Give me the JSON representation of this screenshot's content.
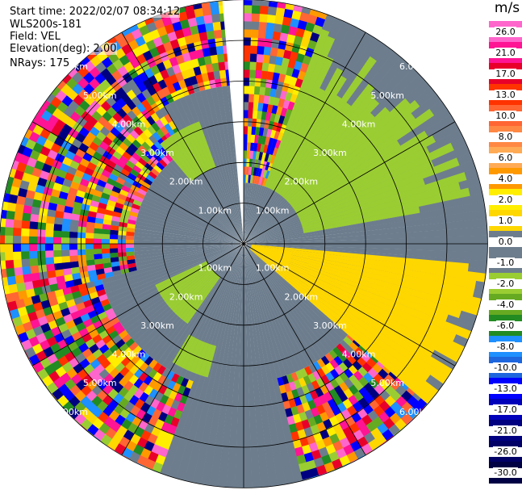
{
  "header": {
    "start_time": "Start time: 2022/02/07 08:34:12",
    "instrument": "WLS200s-181",
    "field": "Field: VEL",
    "elevation": "Elevation(deg): 2.00",
    "nrays": "NRays: 175"
  },
  "colorbar": {
    "unit": "m/s",
    "ticks": [
      "26.0",
      "21.0",
      "17.0",
      "13.0",
      "10.0",
      "8.0",
      "6.0",
      "4.0",
      "2.0",
      "1.0",
      "0.0",
      "-1.0",
      "-2.0",
      "-4.0",
      "-6.0",
      "-8.0",
      "-10.0",
      "-13.0",
      "-17.0",
      "-21.0",
      "-26.0",
      "-30.0"
    ],
    "colors": [
      "#ff66cc",
      "#ff1493",
      "#e8002a",
      "#ff3300",
      "#ff6633",
      "#ff8844",
      "#ffaa55",
      "#ff9900",
      "#ffee00",
      "#ffd700",
      "#6d7d8d",
      "#6d7d8d",
      "#9acd32",
      "#66aa22",
      "#228b22",
      "#1e90ff",
      "#1e66dd",
      "#0000ff",
      "#0000bb",
      "#000080",
      "#000066",
      "#000044"
    ]
  },
  "chart_data": {
    "type": "heatmap",
    "title": "",
    "projection": "radar PPI",
    "value_units": "m/s",
    "value_range": [
      -30,
      26
    ],
    "max_range_km": 6.0,
    "range_rings_km": [
      1,
      2,
      3,
      4,
      5,
      6
    ],
    "spokes_deg": [
      0,
      30,
      60,
      90,
      120,
      150,
      180,
      210,
      240,
      270,
      300,
      330
    ],
    "range_labels": [
      "1.00km",
      "2.00km",
      "3.00km",
      "4.00km",
      "5.00km",
      "6.00km"
    ],
    "regions": [
      {
        "name": "stationary background",
        "value": 0.0,
        "color": "#6d7d8d"
      },
      {
        "name": "approaching north-east",
        "value": -1.5,
        "color": "#9acd32",
        "azimuth_deg": [
          20,
          80
        ],
        "range_km": [
          1.5,
          5.0
        ]
      },
      {
        "name": "receding south-east",
        "value": 2.0,
        "color": "#ffd700",
        "azimuth_deg": [
          95,
          130
        ],
        "range_km": [
          0.2,
          6.0
        ]
      },
      {
        "name": "noise beyond signal",
        "value": "mixed",
        "range_km": [
          4.0,
          6.0
        ]
      }
    ],
    "gap_azimuth_deg": [
      -5,
      0
    ]
  }
}
